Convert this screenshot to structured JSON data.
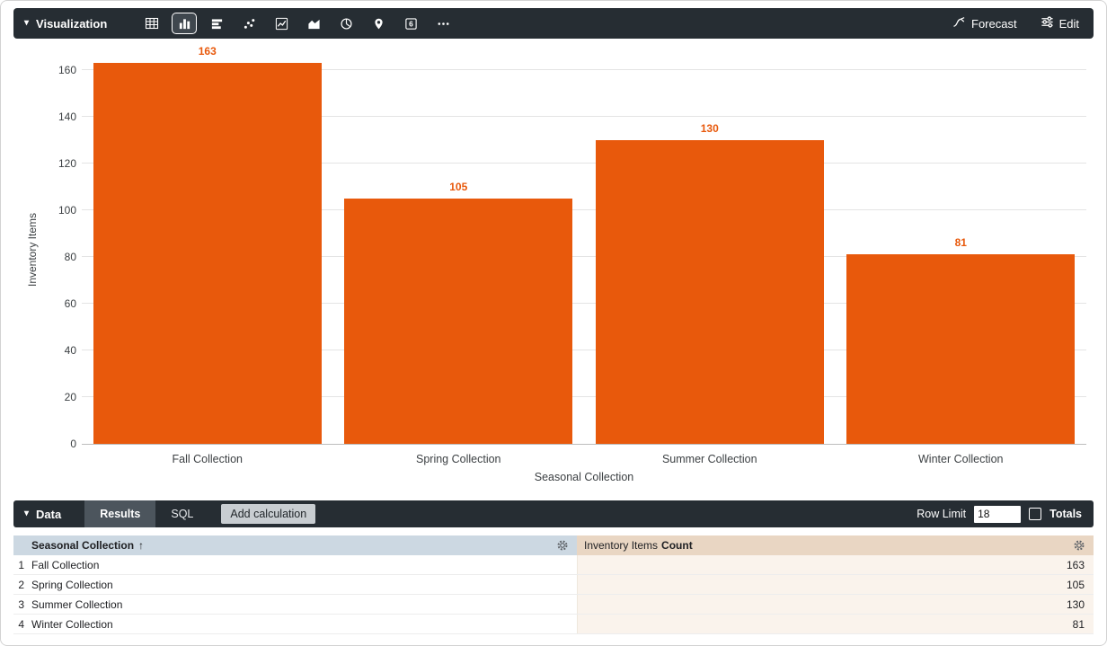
{
  "viz_toolbar": {
    "section_label": "Visualization",
    "icons": [
      "table-icon",
      "column-chart-icon",
      "bar-chart-icon",
      "scatter-plot-icon",
      "line-chart-icon",
      "area-chart-icon",
      "pie-chart-icon",
      "map-icon",
      "single-value-icon",
      "more-icon"
    ],
    "selected_icon": "column-chart-icon",
    "single_value_glyph": "6",
    "forecast_label": "Forecast",
    "edit_label": "Edit"
  },
  "chart_data": {
    "type": "bar",
    "title": "",
    "categories": [
      "Fall Collection",
      "Spring Collection",
      "Summer Collection",
      "Winter Collection"
    ],
    "values": [
      163,
      105,
      130,
      81
    ],
    "xlabel": "Seasonal Collection",
    "ylabel": "Inventory Items",
    "ylim": [
      0,
      160
    ],
    "yticks": [
      0,
      20,
      40,
      60,
      80,
      100,
      120,
      140,
      160
    ],
    "bar_color": "#e8590c",
    "value_label_color": "#e8590c",
    "grid": true,
    "legend": false
  },
  "data_toolbar": {
    "section_label": "Data",
    "tabs": [
      {
        "label": "Results",
        "active": true
      },
      {
        "label": "SQL",
        "active": false
      }
    ],
    "add_calculation_label": "Add calculation",
    "row_limit_label": "Row Limit",
    "row_limit_value": "18",
    "totals_label": "Totals",
    "totals_checked": false
  },
  "results_table": {
    "columns": [
      {
        "title": "Seasonal Collection",
        "sort_indicator": "↑"
      },
      {
        "title_prefix": "Inventory Items",
        "title": "Count"
      }
    ],
    "rows": [
      {
        "index": "1",
        "dimension": "Fall Collection",
        "measure": "163"
      },
      {
        "index": "2",
        "dimension": "Spring Collection",
        "measure": "105"
      },
      {
        "index": "3",
        "dimension": "Summer Collection",
        "measure": "130"
      },
      {
        "index": "4",
        "dimension": "Winter Collection",
        "measure": "81"
      }
    ]
  },
  "colors": {
    "toolbar_bg": "#262d33",
    "bar": "#e8590c",
    "dimension_header_bg": "#ccd8e2",
    "measure_header_bg": "#e9d6c3",
    "measure_cell_bg": "#faf3ec"
  }
}
